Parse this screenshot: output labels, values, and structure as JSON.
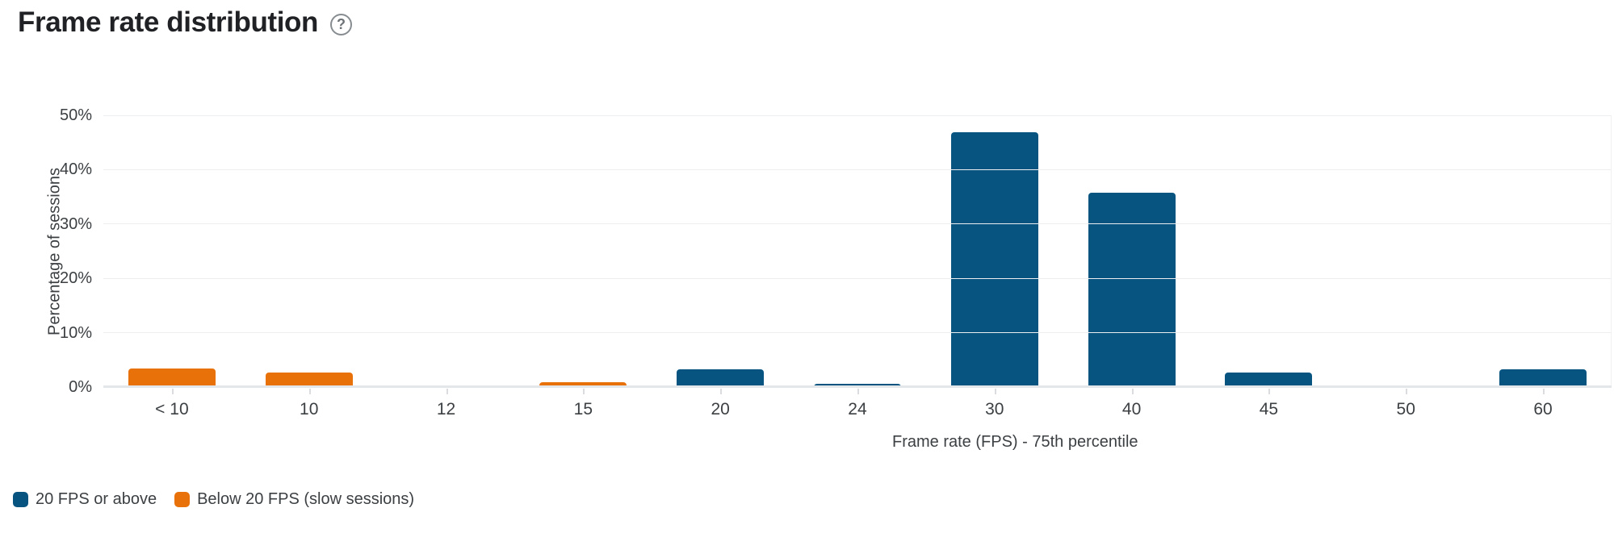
{
  "header": {
    "title": "Frame rate distribution",
    "help_glyph": "?"
  },
  "colors": {
    "series_above": "#085481",
    "series_below": "#E8710A",
    "gridline": "#ECEEF0",
    "axis_text": "#3C4043",
    "title_text": "#202124"
  },
  "chart_data": {
    "type": "bar",
    "title": "Frame rate distribution",
    "xlabel": "Frame rate (FPS) - 75th percentile",
    "ylabel": "Percentage of sessions",
    "ylim": [
      0,
      50
    ],
    "y_ticks": [
      {
        "value": 0,
        "label": "0%"
      },
      {
        "value": 10,
        "label": "10%"
      },
      {
        "value": 20,
        "label": "20%"
      },
      {
        "value": 30,
        "label": "30%"
      },
      {
        "value": 40,
        "label": "40%"
      },
      {
        "value": 50,
        "label": "50%"
      }
    ],
    "grid": "horizontal",
    "categories": [
      "< 10",
      "10",
      "12",
      "15",
      "20",
      "24",
      "30",
      "40",
      "45",
      "50",
      "60"
    ],
    "values": [
      3.4,
      2.6,
      0,
      0.9,
      3.3,
      0.6,
      46.9,
      35.8,
      2.7,
      0,
      3.3
    ],
    "series_membership": [
      "below",
      "below",
      "below",
      "below",
      "above",
      "above",
      "above",
      "above",
      "above",
      "above",
      "above"
    ],
    "series_colors": {
      "above": "#085481",
      "below": "#E8710A"
    },
    "legend_position": "bottom-left",
    "legend": [
      {
        "key": "above",
        "label": "20 FPS or above",
        "color": "#085481"
      },
      {
        "key": "below",
        "label": "Below 20 FPS (slow sessions)",
        "color": "#E8710A"
      }
    ]
  }
}
